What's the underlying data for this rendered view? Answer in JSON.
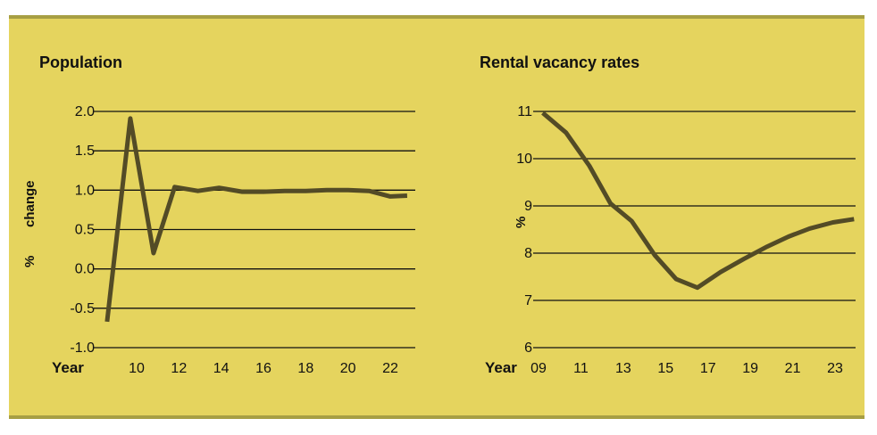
{
  "colors": {
    "background": "#e5d45e",
    "border": "#a79f43",
    "line": "#534b26",
    "grid": "#111111"
  },
  "chart_data": [
    {
      "type": "line",
      "title": "Population",
      "ylabel_parts": [
        "%",
        "change"
      ],
      "xlabel": "Year",
      "ylim": [
        -1.0,
        2.0
      ],
      "yticks": [
        "2.0",
        "1.5",
        "1.0",
        "0.5",
        "0.0",
        "-0.5",
        "-1.0"
      ],
      "ytick_values": [
        2.0,
        1.5,
        1.0,
        0.5,
        0.0,
        -0.5,
        -1.0
      ],
      "xlim": [
        8,
        23.8
      ],
      "xticks": [
        "10",
        "12",
        "14",
        "16",
        "18",
        "20",
        "22"
      ],
      "xtick_values": [
        10,
        12,
        14,
        16,
        18,
        20,
        22
      ],
      "grid": true,
      "series": [
        {
          "x": [
            8.6,
            9.7,
            10.8,
            11.8,
            12.9,
            13.9,
            15.0,
            16.0,
            17.0,
            18.0,
            19.0,
            20.0,
            21.0,
            22.0,
            22.8
          ],
          "values": [
            -0.67,
            1.91,
            0.2,
            1.04,
            0.99,
            1.03,
            0.98,
            0.98,
            0.99,
            0.99,
            1.0,
            1.0,
            0.99,
            0.92,
            0.93
          ]
        }
      ]
    },
    {
      "type": "line",
      "title": "Rental vacancy rates",
      "ylabel_parts": [
        "%"
      ],
      "xlabel": "Year",
      "ylim": [
        6,
        11
      ],
      "yticks": [
        "11",
        "10",
        "9",
        "8",
        "7",
        "6"
      ],
      "ytick_values": [
        11,
        10,
        9,
        8,
        7,
        6
      ],
      "xlim": [
        9,
        24
      ],
      "xticks": [
        "09",
        "11",
        "13",
        "15",
        "17",
        "19",
        "21",
        "23"
      ],
      "xtick_values": [
        9,
        11,
        13,
        15,
        17,
        19,
        21,
        23
      ],
      "grid": true,
      "series": [
        {
          "x": [
            9.2,
            10.3,
            11.4,
            12.4,
            13.4,
            14.5,
            15.5,
            16.5,
            17.6,
            18.7,
            19.8,
            20.8,
            21.8,
            22.9,
            23.9
          ],
          "values": [
            10.97,
            10.55,
            9.85,
            9.05,
            8.68,
            7.95,
            7.45,
            7.27,
            7.6,
            7.88,
            8.14,
            8.35,
            8.52,
            8.65,
            8.72
          ]
        }
      ]
    }
  ]
}
